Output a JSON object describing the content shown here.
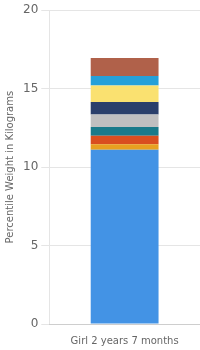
{
  "chart_data": {
    "type": "bar",
    "stacked": true,
    "categories": [
      "Girl 2 years 7 months"
    ],
    "ylabel": "Percentile Weight in Kilograms",
    "series": [
      {
        "color": "#4393E5",
        "values": [
          11.1
        ]
      },
      {
        "color": "#E8A020",
        "values": [
          0.35
        ]
      },
      {
        "color": "#D94E1F",
        "values": [
          0.55
        ]
      },
      {
        "color": "#1A7A8A",
        "values": [
          0.55
        ]
      },
      {
        "color": "#C0BFC0",
        "values": [
          0.8
        ]
      },
      {
        "color": "#2B3F6B",
        "values": [
          0.8
        ]
      },
      {
        "color": "#FAE170",
        "values": [
          1.05
        ]
      },
      {
        "color": "#25A0D8",
        "values": [
          0.6
        ]
      },
      {
        "color": "#B0614A",
        "values": [
          1.15
        ]
      }
    ],
    "ylim": [
      0,
      20
    ],
    "yticks": [
      0,
      5,
      10,
      15,
      20
    ],
    "grid": true
  }
}
